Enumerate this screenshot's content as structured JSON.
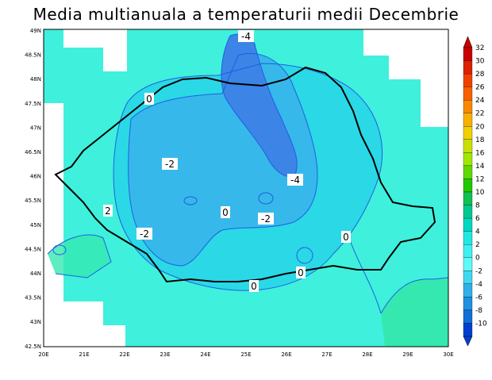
{
  "title": "Media multianuala a temperaturii medii Decembrie",
  "map": {
    "lat_labels": [
      "49N",
      "48.5N",
      "48N",
      "47.5N",
      "47N",
      "46.5N",
      "46N",
      "45.5N",
      "45N",
      "44.5N",
      "44N",
      "43.5N",
      "43N",
      "42.5N"
    ],
    "lon_labels": [
      "20E",
      "21E",
      "22E",
      "23E",
      "24E",
      "25E",
      "26E",
      "27E",
      "28E",
      "29E",
      "30E"
    ],
    "contour_labels": [
      {
        "text": "-4"
      },
      {
        "text": "0"
      },
      {
        "text": "-2"
      },
      {
        "text": "-4"
      },
      {
        "text": "2"
      },
      {
        "text": "0"
      },
      {
        "text": "-2"
      },
      {
        "text": "-2"
      },
      {
        "text": "0"
      },
      {
        "text": "0"
      },
      {
        "text": "0"
      }
    ]
  },
  "colorbar": {
    "labels": [
      "32",
      "30",
      "28",
      "26",
      "24",
      "22",
      "20",
      "18",
      "16",
      "14",
      "12",
      "10",
      "8",
      "6",
      "4",
      "2",
      "0",
      "-2",
      "-4",
      "-6",
      "-8",
      "-10"
    ],
    "colors": [
      "#c80000",
      "#dc2000",
      "#f04000",
      "#f86000",
      "#f88800",
      "#f8b000",
      "#f0d000",
      "#c8e000",
      "#a0e800",
      "#60d800",
      "#20c800",
      "#10c050",
      "#00c890",
      "#00d8c0",
      "#20e8e0",
      "#40f0f0",
      "#60f8f8",
      "#40d8f0",
      "#30b0e8",
      "#2090e0",
      "#1070d8",
      "#0040d0"
    ]
  },
  "colors": {
    "ocean_light": "#3ff0dc",
    "lvl_0": "#2ad8e6",
    "lvl_m2": "#37b8ea",
    "lvl_m4": "#3c84e6",
    "lvl_warm": "#35e8b0",
    "contour": "#1f5fe0",
    "border": "#000000"
  }
}
